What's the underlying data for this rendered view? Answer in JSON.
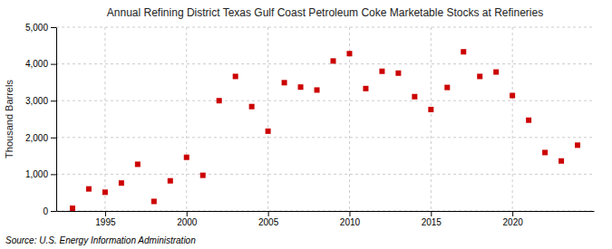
{
  "chart_data": {
    "type": "scatter",
    "title": "Annual Refining District Texas Gulf Coast Petroleum Coke Marketable Stocks at Refineries",
    "y_label": "Thousand Barrels",
    "source": "Source: U.S. Energy Information Administration",
    "x": [
      1993,
      1994,
      1995,
      1996,
      1997,
      1998,
      1999,
      2000,
      2001,
      2002,
      2003,
      2004,
      2005,
      2006,
      2007,
      2008,
      2009,
      2010,
      2011,
      2012,
      2013,
      2014,
      2015,
      2016,
      2017,
      2018,
      2019,
      2020,
      2021,
      2022,
      2023,
      2024
    ],
    "values": [
      75,
      600,
      510,
      760,
      1270,
      260,
      820,
      1460,
      970,
      3000,
      3660,
      2840,
      2170,
      3490,
      3370,
      3290,
      4080,
      4280,
      3330,
      3800,
      3750,
      3110,
      2760,
      3360,
      4330,
      3660,
      3780,
      3140,
      2470,
      1590,
      1360,
      1790
    ],
    "color": "#cc0000",
    "marker": "square",
    "xlim": [
      1992.0,
      2025.0
    ],
    "ylim": [
      0,
      5000
    ],
    "xticks": [
      1995,
      2000,
      2005,
      2010,
      2015,
      2020
    ],
    "yticks": [
      0,
      {
        "value": 1000,
        "label": "1,000"
      },
      {
        "value": 2000,
        "label": "2,000"
      },
      {
        "value": 3000,
        "label": "3,000"
      },
      {
        "value": 4000,
        "label": "4,000"
      },
      {
        "value": 5000,
        "label": "5,000"
      }
    ],
    "grid": true
  }
}
